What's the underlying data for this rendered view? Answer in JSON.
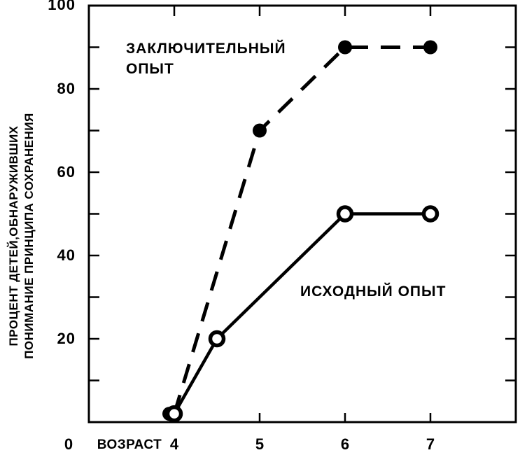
{
  "chart_data": {
    "type": "line",
    "title": "",
    "xlabel": "ВОЗРАСТ",
    "ylabel_line1": "ПРОЦЕНТ ДЕТЕЙ,ОБНАРУЖИВШИХ",
    "ylabel_line2": "ПОНИМАНИЕ ПРИНЦИПА СОХРАНЕНИЯ",
    "origin_label": "0",
    "xlim": [
      3,
      8
    ],
    "ylim": [
      0,
      100
    ],
    "x_ticks": [
      4,
      5,
      6,
      7
    ],
    "x_tick_labels": [
      "4",
      "5",
      "6",
      "7"
    ],
    "y_tick_step": 10,
    "y_label_values": [
      100,
      80,
      60,
      40,
      20
    ],
    "y_tick_labels": [
      "100",
      "80",
      "60",
      "40",
      "20"
    ],
    "grid": false,
    "legend_position": "inline-annotations",
    "frame": "closed box, ticks inward on all four sides",
    "series": [
      {
        "name": "ЗАКЛЮЧИТЕЛЬНЫЙ ОПЫТ",
        "line": "dashed",
        "marker": "filled-circle",
        "x": [
          4,
          5,
          6,
          7
        ],
        "y": [
          2,
          70,
          90,
          90
        ]
      },
      {
        "name": "ИСХОДНЫЙ ОПЫТ",
        "line": "solid",
        "marker": "open-circle",
        "x": [
          4,
          4.5,
          6,
          7
        ],
        "y": [
          2,
          20,
          50,
          50
        ]
      }
    ],
    "colors": {
      "ink": "#000000",
      "background": "#ffffff"
    }
  }
}
